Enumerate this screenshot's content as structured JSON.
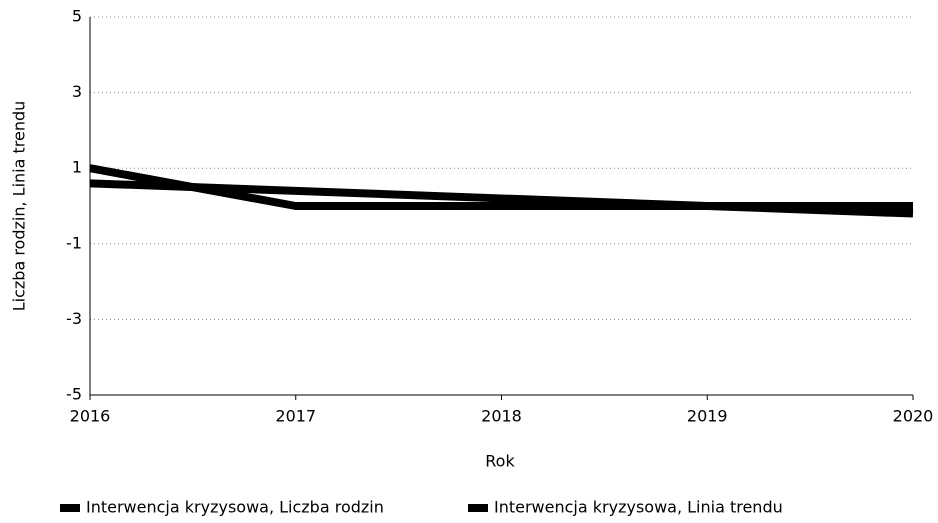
{
  "chart_data": {
    "type": "line",
    "xlabel": "Rok",
    "ylabel": "Liczba rodzin, Linia trendu",
    "x": [
      2016,
      2017,
      2018,
      2019,
      2020
    ],
    "series": [
      {
        "name": "Interwencja kryzysowa, Liczba rodzin",
        "color": "#000000",
        "values": [
          1,
          0,
          0,
          0,
          0
        ]
      },
      {
        "name": "Interwencja kryzysowa, Linia trendu",
        "color": "#000000",
        "values": [
          0.6,
          0.4,
          0.2,
          0,
          -0.2
        ]
      }
    ],
    "xlim": [
      2016,
      2020
    ],
    "xticks": [
      2016,
      2017,
      2018,
      2019,
      2020
    ],
    "ylim": [
      -5,
      5
    ],
    "yticks": [
      -5,
      -3,
      -1,
      1,
      3,
      5
    ],
    "grid": true,
    "legend": "bottom"
  }
}
